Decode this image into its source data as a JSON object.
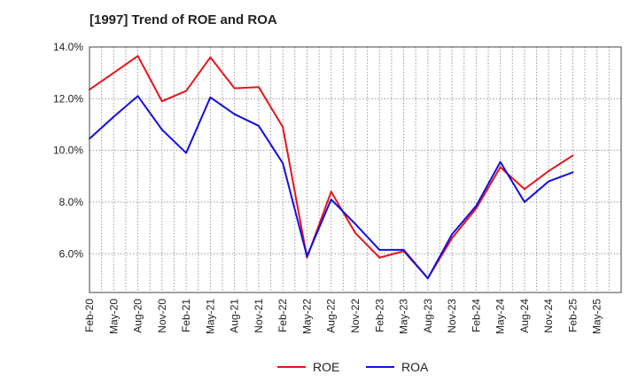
{
  "chart_data": {
    "type": "line",
    "title": "[1997]  Trend of ROE and ROA",
    "xlabel": "",
    "ylabel": "",
    "ylim": [
      4.5,
      14.0
    ],
    "yticks": [
      "14.0%",
      "12.0%",
      "10.0%",
      "8.0%",
      "6.0%"
    ],
    "ytick_values": [
      14.0,
      12.0,
      10.0,
      8.0,
      6.0
    ],
    "categories": [
      "Feb-20",
      "May-20",
      "Aug-20",
      "Nov-20",
      "Feb-21",
      "May-21",
      "Aug-21",
      "Nov-21",
      "Feb-22",
      "May-22",
      "Aug-22",
      "Nov-22",
      "Feb-23",
      "May-23",
      "Aug-23",
      "Nov-23",
      "Feb-24",
      "May-24",
      "Aug-24",
      "Nov-24",
      "Feb-25",
      "May-25"
    ],
    "grid": true,
    "legend_position": "bottom-center",
    "series": [
      {
        "name": "ROE",
        "color": "#e8141b",
        "values": [
          12.35,
          13.0,
          13.65,
          11.9,
          12.3,
          13.6,
          12.4,
          12.45,
          10.9,
          5.85,
          8.4,
          6.8,
          5.85,
          6.1,
          5.05,
          6.6,
          7.75,
          9.35,
          8.5,
          9.2,
          9.8,
          null
        ]
      },
      {
        "name": "ROA",
        "color": "#1010e0",
        "values": [
          10.45,
          11.3,
          12.1,
          10.8,
          9.9,
          12.05,
          11.4,
          10.95,
          9.5,
          5.9,
          8.1,
          7.15,
          6.15,
          6.15,
          5.05,
          6.75,
          7.85,
          9.55,
          8.0,
          8.8,
          9.15,
          null
        ]
      }
    ]
  }
}
